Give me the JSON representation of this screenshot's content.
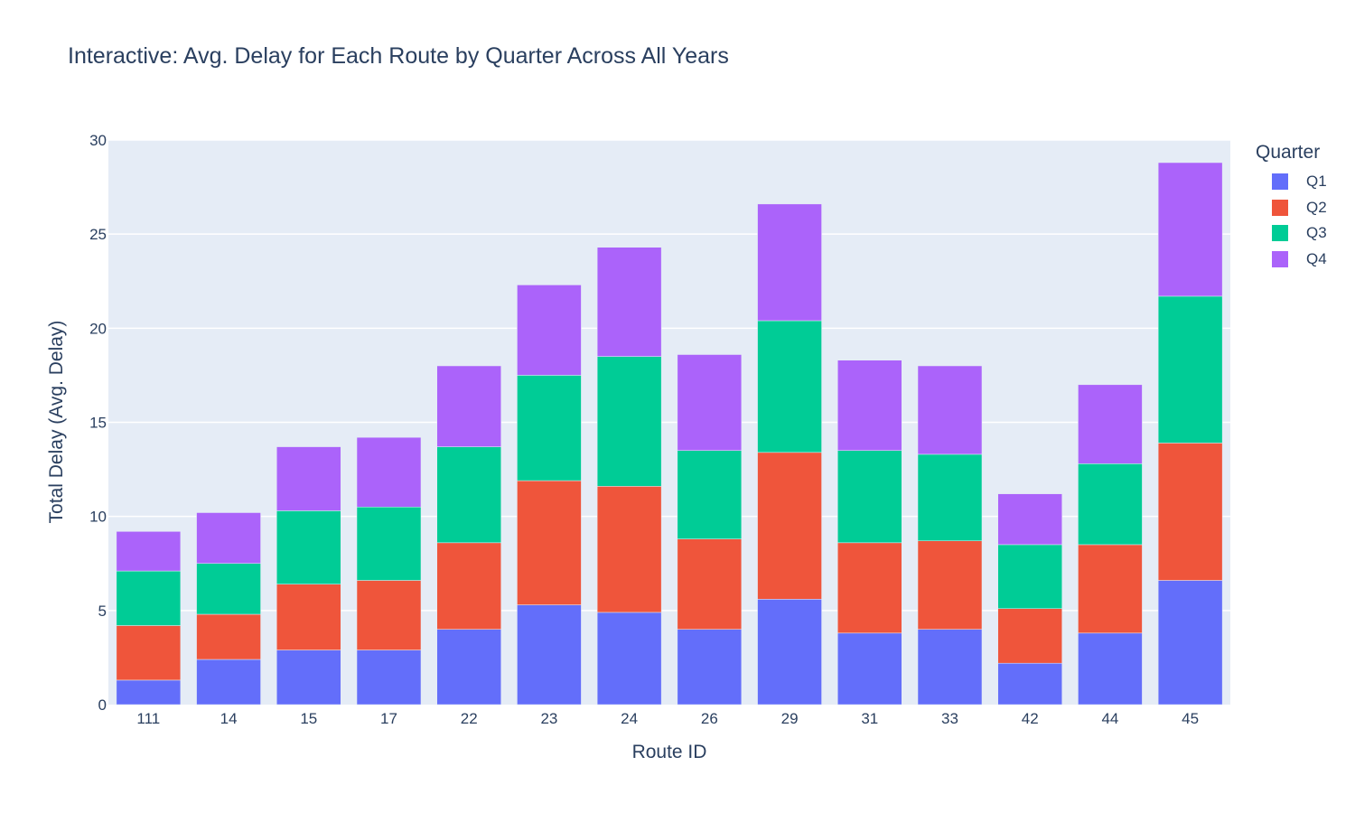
{
  "chart_data": {
    "type": "bar",
    "stacked": true,
    "title": "Interactive: Avg. Delay for Each Route by Quarter Across All Years",
    "xlabel": "Route ID",
    "ylabel": "Total Delay (Avg. Delay)",
    "ylim": [
      0,
      30
    ],
    "yticks": [
      0,
      5,
      10,
      15,
      20,
      25,
      30
    ],
    "grid": true,
    "legend_title": "Quarter",
    "legend_position": "right",
    "categories": [
      "111",
      "14",
      "15",
      "17",
      "22",
      "23",
      "24",
      "26",
      "29",
      "31",
      "33",
      "42",
      "44",
      "45"
    ],
    "series": [
      {
        "name": "Q1",
        "color": "#636efa",
        "values": [
          1.3,
          2.4,
          2.9,
          2.9,
          4.0,
          5.3,
          4.9,
          4.0,
          5.6,
          3.8,
          4.0,
          2.2,
          3.8,
          6.6
        ]
      },
      {
        "name": "Q2",
        "color": "#ef553b",
        "values": [
          2.9,
          2.4,
          3.5,
          3.7,
          4.6,
          6.6,
          6.7,
          4.8,
          7.8,
          4.8,
          4.7,
          2.9,
          4.7,
          7.3
        ]
      },
      {
        "name": "Q3",
        "color": "#00cc96",
        "values": [
          2.9,
          2.7,
          3.9,
          3.9,
          5.1,
          5.6,
          6.9,
          4.7,
          7.0,
          4.9,
          4.6,
          3.4,
          4.3,
          7.8
        ]
      },
      {
        "name": "Q4",
        "color": "#ab63fa",
        "values": [
          2.1,
          2.7,
          3.4,
          3.7,
          4.3,
          4.8,
          5.8,
          5.1,
          6.2,
          4.8,
          4.7,
          2.7,
          4.2,
          7.1
        ]
      }
    ]
  }
}
